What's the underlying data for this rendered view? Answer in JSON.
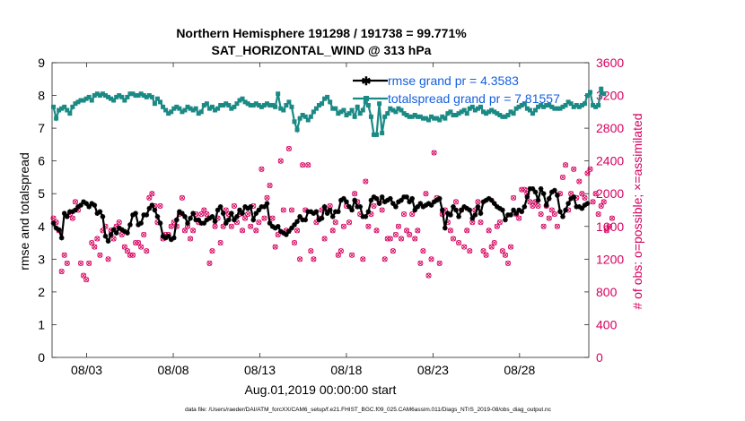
{
  "chart_data": {
    "type": "line",
    "title": "Northern Hemisphere 191298 / 191738 = 99.771%",
    "subtitle": "SAT_HORIZONTAL_WIND @ 313 hPa",
    "ylabel": "rmse and totalspread",
    "y2label": "# of obs: o=possible; ×=assimilated",
    "xlabel": "Aug.01,2019 00:00:00 start",
    "ylim": [
      0,
      9
    ],
    "y2lim": [
      0,
      3600
    ],
    "xlim": [
      1.0,
      32.0
    ],
    "yticks": [
      "0",
      "1",
      "2",
      "3",
      "4",
      "5",
      "6",
      "7",
      "8",
      "9"
    ],
    "y2ticks": [
      "0",
      "400",
      "800",
      "1200",
      "1600",
      "2000",
      "2400",
      "2800",
      "3200",
      "3600"
    ],
    "xtick_labels": [
      "08/03",
      "08/08",
      "08/13",
      "08/18",
      "08/23",
      "08/28"
    ],
    "xtick_values": [
      3,
      8,
      13,
      18,
      23,
      28
    ],
    "footnote": "data file: /Users/raeder/DAI/ATM_forcXX/CAM6_setup/f.e21.FHIST_BGC.f09_025.CAM6assim.011/Diags_NTrS_2019-08/obs_diag_output.nc",
    "series": [
      {
        "name": "rmse grand pr = 4.3583",
        "color": "#000000",
        "axis": "left",
        "values": [
          4.1,
          3.95,
          3.9,
          3.65,
          4.4,
          4.3,
          4.45,
          4.45,
          4.5,
          4.6,
          4.65,
          4.75,
          4.7,
          4.6,
          4.7,
          4.65,
          4.4,
          4.45,
          4.3,
          3.7,
          3.55,
          3.75,
          3.9,
          3.8,
          3.95,
          3.9,
          3.85,
          3.8,
          4.05,
          4.35,
          4.4,
          4.05,
          4.1,
          4.35,
          4.35,
          4.55,
          4.65,
          4.5,
          4.3,
          4.1,
          3.7,
          3.65,
          3.7,
          3.6,
          3.65,
          4.2,
          4.45,
          4.4,
          4.3,
          4.1,
          4.25,
          4.4,
          4.2,
          4.2,
          4.1,
          4.1,
          4.2,
          4.25,
          4.3,
          4.15,
          4.5,
          4.6,
          4.4,
          4.1,
          4.2,
          4.4,
          4.2,
          4.3,
          4.5,
          4.4,
          4.6,
          4.55,
          4.6,
          4.2,
          4.4,
          4.5,
          4.6,
          4.6,
          4.7,
          4.1,
          4.0,
          3.95,
          4.0,
          3.85,
          3.8,
          3.75,
          3.85,
          3.95,
          4.05,
          4.15,
          4.3,
          4.2,
          4.2,
          4.45,
          4.45,
          4.4,
          4.45,
          4.2,
          4.25,
          4.6,
          4.4,
          4.5,
          4.3,
          4.45,
          4.45,
          4.8,
          4.85,
          4.75,
          4.6,
          4.5,
          4.8,
          4.6,
          4.6,
          4.3,
          4.3,
          4.45,
          4.8,
          4.9,
          4.85,
          4.7,
          4.9,
          4.75,
          4.8,
          4.85,
          4.7,
          4.6,
          4.75,
          4.8,
          4.9,
          4.9,
          4.75,
          4.85,
          4.5,
          4.6,
          4.7,
          4.6,
          4.65,
          4.7,
          4.65,
          4.75,
          4.8,
          4.85,
          4.5,
          3.95,
          4.4,
          4.35,
          4.6,
          4.5,
          4.3,
          4.5,
          4.6,
          4.55,
          4.5,
          4.25,
          4.35,
          4.6,
          4.4,
          4.75,
          4.8,
          4.85,
          4.8,
          4.7,
          4.6,
          4.55,
          4.5,
          4.2,
          4.35,
          4.35,
          4.5,
          4.4,
          4.5,
          4.45,
          4.6,
          4.9,
          5.15,
          5.15,
          5.05,
          4.8,
          5.15,
          5.0,
          4.65,
          4.85,
          5.05,
          5.1,
          4.95,
          4.45,
          4.3,
          4.5,
          4.7,
          4.85,
          4.9,
          4.6,
          4.6,
          4.55,
          4.65,
          4.7
        ]
      },
      {
        "name": "totalspread grand pr = 7.81557",
        "color": "#1b8a85",
        "axis": "left",
        "values": [
          7.65,
          7.3,
          7.55,
          7.6,
          7.65,
          7.55,
          7.45,
          7.65,
          7.75,
          7.8,
          7.85,
          7.85,
          7.9,
          7.95,
          7.85,
          8.0,
          8.05,
          8.0,
          8.05,
          8.0,
          7.95,
          7.9,
          7.85,
          7.95,
          8.0,
          7.95,
          7.85,
          7.95,
          8.05,
          8.05,
          8.0,
          8.0,
          8.05,
          8.0,
          7.95,
          8.0,
          7.95,
          7.75,
          7.9,
          7.8,
          7.65,
          7.55,
          7.45,
          7.5,
          7.6,
          7.65,
          7.6,
          7.5,
          7.55,
          7.65,
          7.6,
          7.55,
          7.6,
          7.45,
          7.5,
          7.7,
          7.75,
          7.6,
          7.65,
          7.55,
          7.6,
          7.7,
          7.7,
          7.75,
          7.7,
          7.6,
          7.65,
          7.75,
          7.85,
          7.9,
          7.8,
          7.75,
          7.7,
          7.7,
          7.75,
          7.7,
          7.65,
          7.7,
          7.75,
          7.7,
          7.7,
          7.65,
          8.05,
          7.6,
          7.55,
          7.7,
          7.8,
          7.65,
          7.2,
          6.95,
          7.3,
          7.4,
          7.35,
          7.25,
          7.35,
          7.5,
          7.6,
          7.7,
          7.75,
          7.9,
          7.95,
          7.8,
          7.6,
          7.6,
          7.45,
          7.5,
          7.55,
          7.4,
          7.45,
          7.55,
          7.35,
          7.65,
          7.45,
          7.55,
          7.8,
          7.7,
          7.35,
          6.8,
          6.8,
          7.75,
          6.85,
          7.35,
          7.45,
          7.6,
          7.55,
          7.5,
          7.6,
          7.55,
          7.45,
          7.4,
          7.35,
          7.35,
          7.4,
          7.35,
          7.35,
          7.3,
          7.3,
          7.25,
          7.35,
          7.3,
          7.3,
          7.25,
          7.35,
          7.3,
          7.45,
          7.5,
          7.4,
          7.4,
          7.45,
          7.5,
          7.55,
          7.45,
          7.6,
          7.65,
          7.55,
          7.6,
          7.65,
          7.5,
          7.45,
          7.5,
          7.55,
          7.5,
          7.45,
          7.4,
          7.35,
          7.35,
          7.4,
          7.5,
          7.45,
          7.6,
          7.65,
          7.7,
          7.75,
          7.6,
          7.55,
          7.45,
          7.55,
          7.65,
          7.7,
          7.65,
          7.7,
          7.7,
          7.65,
          7.6,
          7.6,
          7.6,
          7.65,
          7.7,
          7.8,
          7.75,
          7.65,
          7.7,
          7.65,
          7.7,
          7.75,
          8.0,
          8.1,
          7.7,
          7.65,
          7.7,
          8.2,
          8.05
        ]
      },
      {
        "name": "obs possible / assimilated",
        "color": "#d6005f",
        "axis": "right",
        "values": [
          1700,
          1650,
          1550,
          1050,
          1250,
          1150,
          1750,
          1700,
          1900,
          1800,
          1150,
          1000,
          950,
          1150,
          1400,
          1350,
          1450,
          1250,
          1550,
          1600,
          1200,
          1550,
          1450,
          1600,
          1650,
          1500,
          1350,
          1300,
          1250,
          1250,
          1400,
          1400,
          1350,
          1500,
          1300,
          1950,
          2000,
          1850,
          1650,
          1850,
          1450,
          1500,
          1500,
          1600,
          1650,
          1600,
          1750,
          1950,
          1550,
          1600,
          1450,
          1550,
          1750,
          1650,
          1750,
          1800,
          1750,
          1150,
          1300,
          1600,
          1700,
          1400,
          1600,
          1800,
          1750,
          1600,
          1850,
          1650,
          1750,
          1550,
          1700,
          1750,
          1600,
          1850,
          1550,
          1650,
          2300,
          1700,
          1950,
          2100,
          1700,
          1350,
          1500,
          2400,
          1800,
          1550,
          2550,
          1800,
          1400,
          1550,
          1200,
          2350,
          1800,
          2350,
          1300,
          1200,
          1650,
          1700,
          1800,
          1450,
          1800,
          1850,
          1550,
          1650,
          1250,
          1300,
          1600,
          1850,
          1650,
          1250,
          2000,
          1900,
          1750,
          1200,
          2150,
          1600,
          1750,
          1850,
          1550,
          1900,
          1800,
          1200,
          1450,
          1450,
          1300,
          1500,
          1600,
          1450,
          1750,
          1550,
          1500,
          1750,
          1450,
          1550,
          1150,
          1300,
          2000,
          1000,
          1200,
          2500,
          1950,
          1150,
          1750,
          1800,
          1650,
          1550,
          1450,
          1900,
          1400,
          1800,
          1350,
          1550,
          1300,
          1650,
          1800,
          1900,
          1650,
          1300,
          1250,
          1550,
          1350,
          1400,
          1600,
          1650,
          1300,
          1250,
          1150,
          1350,
          1950,
          1750,
          1700,
          2050,
          2050,
          2000,
          1900,
          1850,
          1900,
          1850,
          1750,
          1600,
          1850,
          1700,
          1800,
          1750,
          1600,
          2000,
          2200,
          2350,
          1800,
          2000,
          2300,
          1950,
          2150,
          2000,
          1950,
          2250,
          2300,
          1900,
          2000,
          1750,
          1850,
          1900,
          1550,
          1600,
          1700
        ]
      }
    ]
  }
}
